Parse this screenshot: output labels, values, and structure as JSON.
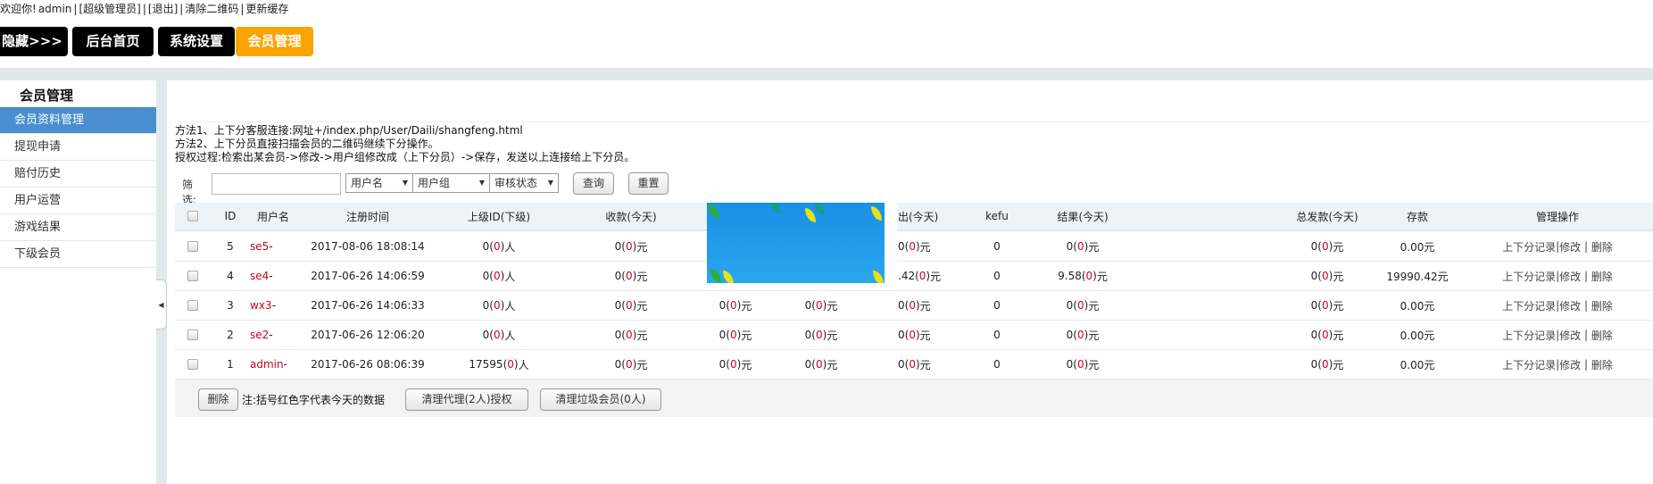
{
  "topbar": {
    "welcome": "欢迎你!",
    "user": "admin",
    "role": "[超级管理员]",
    "logout": "[退出]",
    "clear_qr": "清除二维码",
    "refresh_cache": "更新缓存",
    "sep": "|"
  },
  "nav": [
    {
      "label": "隐藏>>>"
    },
    {
      "label": "后台首页"
    },
    {
      "label": "系统设置"
    },
    {
      "label": "会员管理",
      "active": true
    }
  ],
  "sidebar": {
    "title": "会员管理",
    "items": [
      {
        "label": "会员资料管理",
        "active": true
      },
      {
        "label": "提现申请"
      },
      {
        "label": "赔付历史"
      },
      {
        "label": "用户运营"
      },
      {
        "label": "游戏结果"
      },
      {
        "label": "下级会员"
      }
    ],
    "collapse_icon": "◀"
  },
  "info": [
    "方法1、上下分客服连接:网址+/index.php/User/Daili/shangfeng.html",
    "方法2、上下分员直接扫描会员的二维码继续下分操作。",
    "授权过程:检索出某会员->修改->用户组修改成（上下分员）->保存，发送以上连接给上下分员。"
  ],
  "filter": {
    "label": "筛选:",
    "keyword": "",
    "selects": [
      "用户名",
      "用户组",
      "审核状态"
    ],
    "search": "查询",
    "reset": "重置"
  },
  "table": {
    "headers": {
      "id": "ID",
      "user": "用户名",
      "reg": "注册时间",
      "parent": "上级ID(下级)",
      "recv": "收款(今天)",
      "out": "出(今天)",
      "kefu": "kefu",
      "result": "结果(今天)",
      "total": "总发款(今天)",
      "deposit": "存款",
      "ops": "管理操作"
    },
    "rows": [
      {
        "id": "5",
        "user": "se5",
        "reg": "2017-08-06 18:08:14",
        "parent": "0",
        "recv": "0",
        "h1": "",
        "h2": "",
        "out": "0",
        "kefu": "0",
        "result": "0",
        "total": "0",
        "deposit": "0.00元"
      },
      {
        "id": "4",
        "user": "se4",
        "reg": "2017-06-26 14:06:59",
        "parent": "0",
        "recv": "0",
        "h1": "",
        "h2": "",
        "out": ".42",
        "kefu": "0",
        "result": "9.58",
        "total": "0",
        "deposit": "19990.42元"
      },
      {
        "id": "3",
        "user": "wx3",
        "reg": "2017-06-26 14:06:33",
        "parent": "0",
        "recv": "0",
        "h1": "0",
        "h2": "0",
        "out": "0",
        "kefu": "0",
        "result": "0",
        "total": "0",
        "deposit": "0.00元"
      },
      {
        "id": "2",
        "user": "se2",
        "reg": "2017-06-26 12:06:20",
        "parent": "0",
        "recv": "0",
        "h1": "0",
        "h2": "0",
        "out": "0",
        "kefu": "0",
        "result": "0",
        "total": "0",
        "deposit": "0.00元"
      },
      {
        "id": "1",
        "user": "admin",
        "reg": "2017-06-26 08:06:39",
        "parent": "17595",
        "recv": "0",
        "h1": "0",
        "h2": "0",
        "out": "0",
        "kefu": "0",
        "result": "0",
        "total": "0",
        "deposit": "0.00元"
      }
    ],
    "today": "0",
    "unit_person": "人",
    "unit_yuan": "元",
    "user_suffix": "-",
    "ops": {
      "record": "上下分记录",
      "edit": "修改",
      "sep1": "|",
      "sep2": " | ",
      "delete": "删除"
    }
  },
  "footer": {
    "delete": "删除",
    "note": "注:括号红色字代表今天的数据",
    "clear_agents": "清理代理(2人)授权",
    "clear_junk": "清理垃圾会员(0人)"
  },
  "colors": {
    "accent": "#f9a400",
    "sidebar_active": "#4a8ed0",
    "today_red": "#d0021b"
  }
}
